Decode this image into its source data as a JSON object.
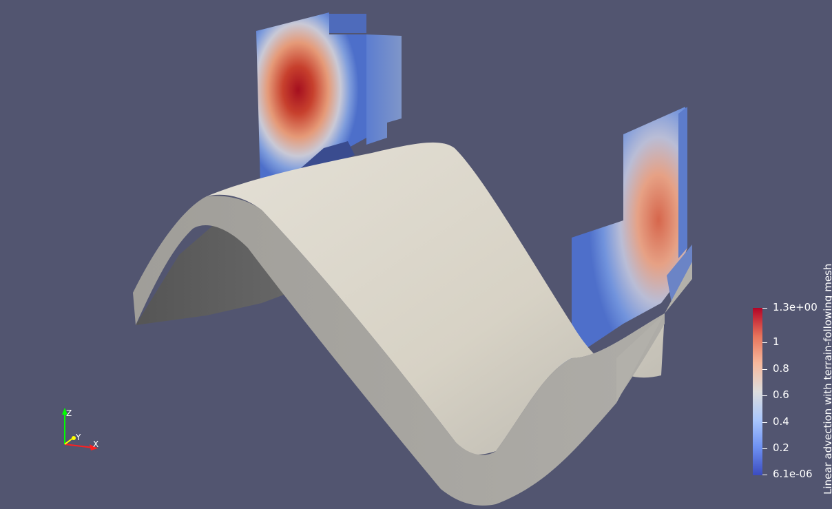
{
  "scalar_bar": {
    "title": "Linear advection with terrain-following mesh",
    "ticks": [
      "1.3e+00",
      "1",
      "0.8",
      "0.6",
      "0.4",
      "0.2",
      "6.1e-06"
    ],
    "min": 6.1e-06,
    "max": 1.3,
    "colormap": [
      "#3b4cc0",
      "#6f92f3",
      "#aac7fd",
      "#dddddd",
      "#f7b89c",
      "#e7745b",
      "#b40426"
    ]
  },
  "orientation_axes": {
    "x_label": "X",
    "y_label": "Y",
    "z_label": "Z",
    "x_color": "#ff2020",
    "y_color": "#ffff00",
    "z_color": "#00ff00"
  },
  "colors": {
    "background": "#525570",
    "terrain_top": "#d6d1c4",
    "terrain_side": "#a8a6a1",
    "terrain_inner": "#5c5c5c"
  }
}
